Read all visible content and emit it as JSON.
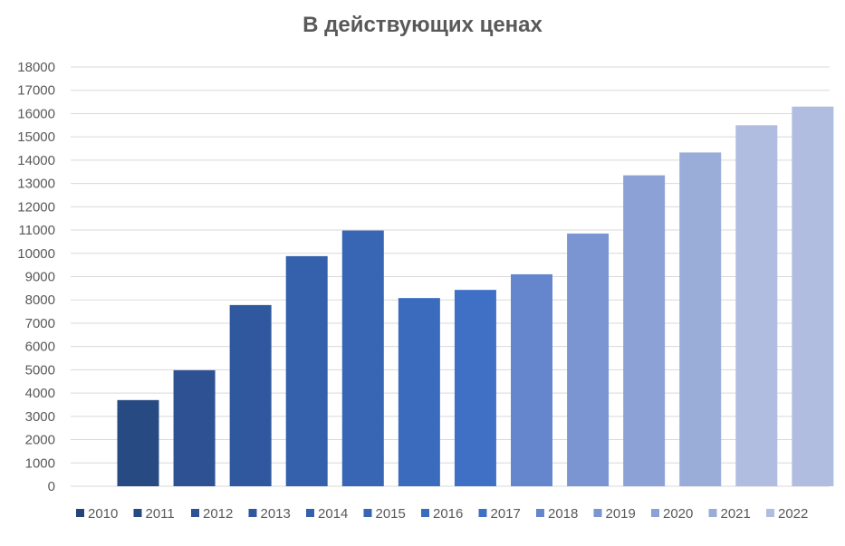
{
  "chart_data": {
    "type": "bar",
    "title": "В действующих ценах",
    "xlabel": "",
    "ylabel": "",
    "ylim": [
      0,
      18000
    ],
    "y_ticks": [
      0,
      1000,
      2000,
      3000,
      4000,
      5000,
      6000,
      7000,
      8000,
      9000,
      10000,
      11000,
      12000,
      13000,
      14000,
      15000,
      16000,
      17000,
      18000
    ],
    "grid": true,
    "legend_position": "bottom",
    "series": [
      {
        "name": "2010",
        "value": 0,
        "color": "#264478"
      },
      {
        "name": "2011",
        "value": 3700,
        "color": "#284a83"
      },
      {
        "name": "2012",
        "value": 4980,
        "color": "#2d5192"
      },
      {
        "name": "2013",
        "value": 7780,
        "color": "#30589e"
      },
      {
        "name": "2014",
        "value": 9880,
        "color": "#3460ac"
      },
      {
        "name": "2015",
        "value": 10980,
        "color": "#3866b5"
      },
      {
        "name": "2016",
        "value": 8080,
        "color": "#3b6bbd"
      },
      {
        "name": "2017",
        "value": 8430,
        "color": "#4070c6"
      },
      {
        "name": "2018",
        "value": 9100,
        "color": "#6585cd"
      },
      {
        "name": "2019",
        "value": 10850,
        "color": "#7a95d2"
      },
      {
        "name": "2020",
        "value": 13350,
        "color": "#8ca2d6"
      },
      {
        "name": "2021",
        "value": 14330,
        "color": "#9aadd9"
      },
      {
        "name": "2022",
        "value": 15500,
        "color": "#b1bde0"
      },
      {
        "name": "",
        "value": 16300,
        "color": "#b1bde0"
      }
    ]
  }
}
